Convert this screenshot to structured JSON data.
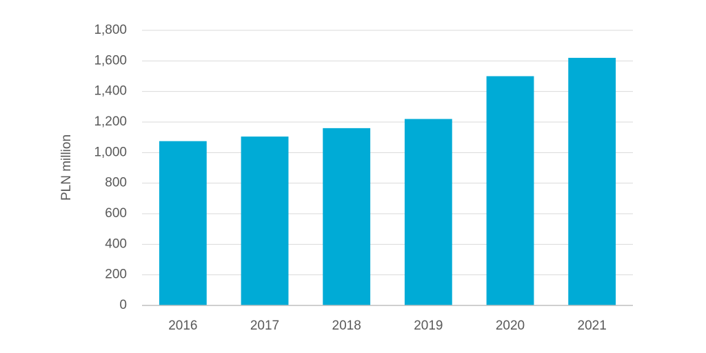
{
  "chart_data": {
    "type": "bar",
    "y_label": "PLN million",
    "categories": [
      "2016",
      "2017",
      "2018",
      "2019",
      "2020",
      "2021"
    ],
    "values": [
      1075,
      1105,
      1160,
      1220,
      1500,
      1620
    ],
    "color": "#00abd6",
    "ylim": [
      0,
      1800
    ],
    "yticks": [
      0,
      200,
      400,
      600,
      800,
      {
        "value": 1000,
        "label": "1,000"
      },
      {
        "value": 1200,
        "label": "1,200"
      },
      {
        "value": 1400,
        "label": "1,400"
      },
      {
        "value": 1600,
        "label": "1,600"
      },
      {
        "value": 1800,
        "label": "1,800"
      }
    ],
    "grid": true
  }
}
